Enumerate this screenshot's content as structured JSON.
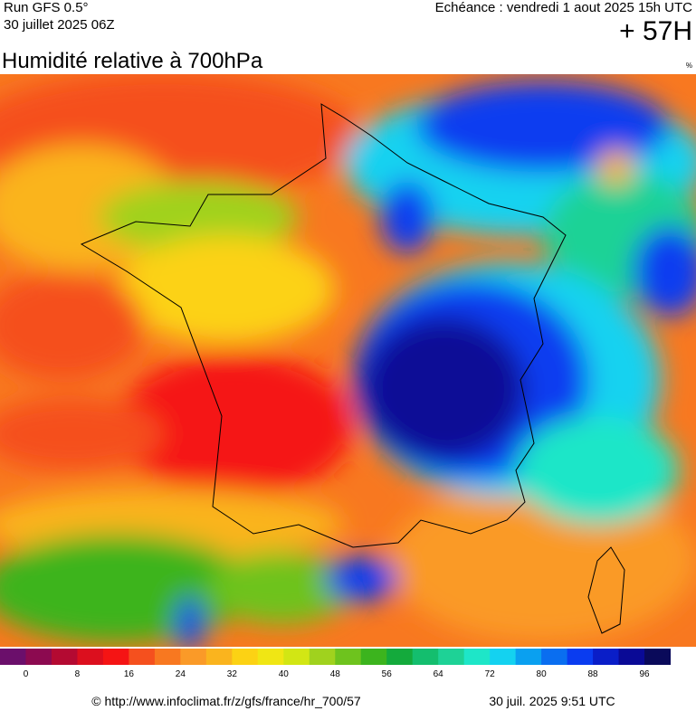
{
  "header": {
    "run": "Run GFS 0.5°",
    "run_date": "30 juillet 2025 06Z",
    "valid": "Echéance : vendredi 1 aout 2025 15h UTC",
    "lead": "+ 57H",
    "title": "Humidité relative à 700hPa",
    "unit": "%"
  },
  "colorbar": {
    "colors": [
      "#6b0f6b",
      "#8c0a50",
      "#b40a32",
      "#dc0f1e",
      "#f51414",
      "#f5501e",
      "#f87820",
      "#fa9a28",
      "#fab41e",
      "#fcd214",
      "#f0e614",
      "#d2e614",
      "#a0d21e",
      "#6ec31e",
      "#3cb41e",
      "#14aa3c",
      "#14be6e",
      "#1ed296",
      "#1ee6c8",
      "#14d2f0",
      "#0aa0f0",
      "#0a6ef0",
      "#0a3cf0",
      "#0a1ec8",
      "#0a0a96",
      "#0a0a5a"
    ],
    "ticks": [
      0,
      8,
      16,
      24,
      32,
      40,
      48,
      56,
      64,
      72,
      80,
      88,
      96
    ]
  },
  "footer": {
    "source": "© http://www.infoclimat.fr/z/gfs/france/hr_700/57",
    "generated": "30 juil. 2025  9:51 UTC"
  }
}
